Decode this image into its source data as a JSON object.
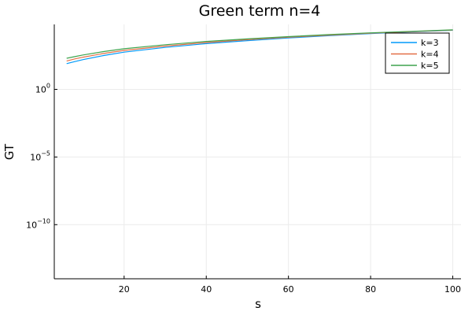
{
  "chart_data": {
    "type": "line",
    "title": "Green term n=4",
    "xlabel": "s",
    "ylabel": "GT",
    "xlim": [
      3,
      102
    ],
    "ylim_log10": [
      -14.0,
      4.8
    ],
    "yscale": "log10",
    "grid": true,
    "legend_position": "top-right",
    "x_ticks": [
      20,
      40,
      60,
      80,
      100
    ],
    "y_ticks": [
      {
        "exp": 0,
        "base": "10",
        "sup": "0"
      },
      {
        "exp": -5,
        "base": "10",
        "sup": "−5"
      },
      {
        "exp": -10,
        "base": "10",
        "sup": "−10"
      }
    ],
    "series": [
      {
        "name": "k=3",
        "color": "#009AFA",
        "x": [
          6,
          8,
          10,
          15,
          20,
          30,
          40,
          50,
          60,
          70,
          80,
          90,
          100
        ],
        "log10_y": [
          1.9,
          2.05,
          2.2,
          2.5,
          2.75,
          3.1,
          3.38,
          3.6,
          3.8,
          3.97,
          4.12,
          4.25,
          4.37
        ]
      },
      {
        "name": "k=4",
        "color": "#E36F47",
        "x": [
          6,
          8,
          10,
          15,
          20,
          30,
          40,
          50,
          60,
          70,
          80,
          90,
          100
        ],
        "log10_y": [
          2.1,
          2.25,
          2.38,
          2.65,
          2.88,
          3.2,
          3.46,
          3.67,
          3.85,
          4.01,
          4.15,
          4.27,
          4.38
        ]
      },
      {
        "name": "k=5",
        "color": "#3EA44E",
        "x": [
          6,
          8,
          10,
          15,
          20,
          30,
          40,
          50,
          60,
          70,
          80,
          90,
          100
        ],
        "log10_y": [
          2.3,
          2.42,
          2.54,
          2.79,
          3.0,
          3.3,
          3.54,
          3.73,
          3.9,
          4.05,
          4.18,
          4.29,
          4.4
        ]
      }
    ]
  }
}
